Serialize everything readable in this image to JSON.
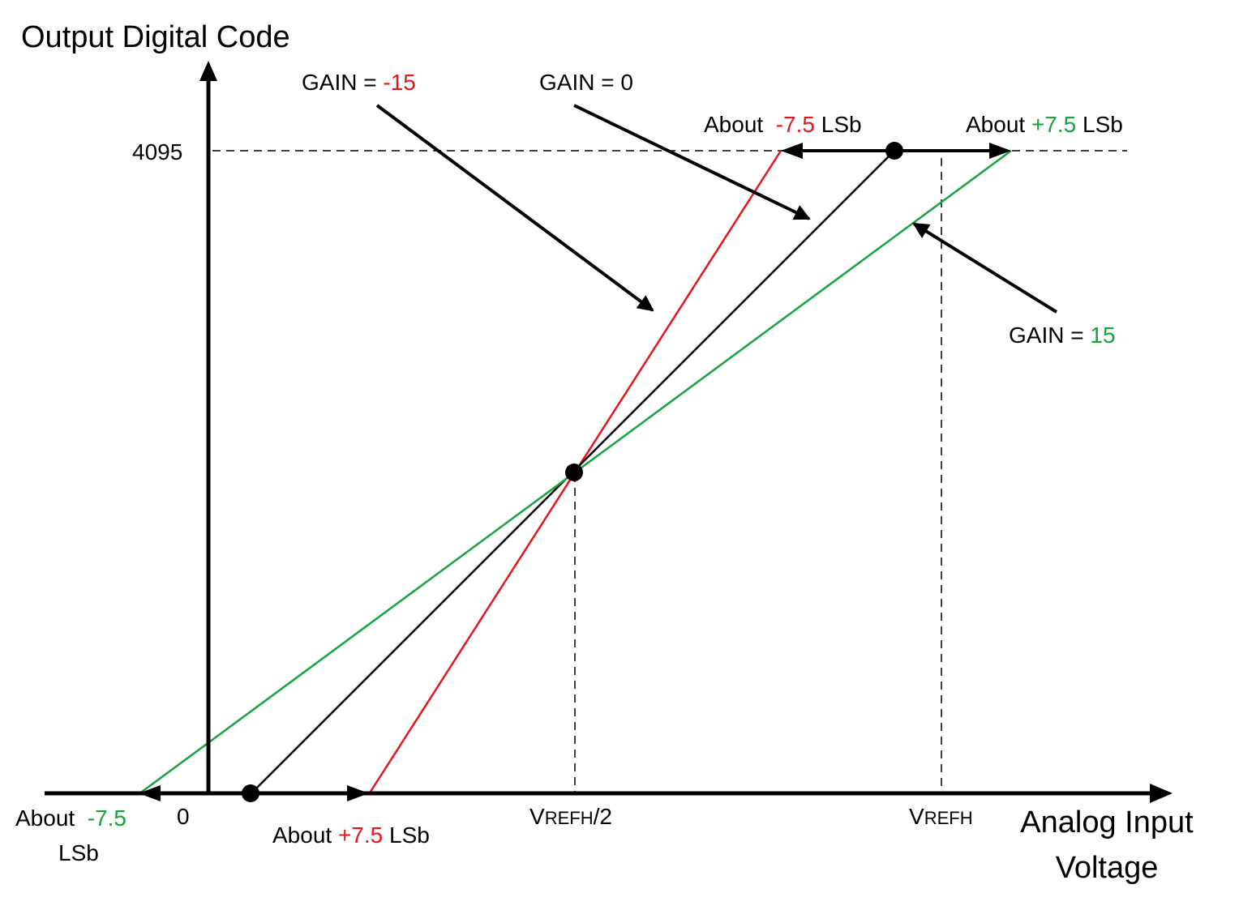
{
  "colors": {
    "axis": "#000000",
    "gain_neg": "#e8141b",
    "gain_zero": "#000000",
    "gain_pos": "#14a33c",
    "background": "#ffffff"
  },
  "axes": {
    "y_title": "Output Digital Code",
    "x_title_line1": "Analog Input",
    "x_title_line2": "Voltage",
    "y_tick_top": "4095",
    "x_tick_zero": "0",
    "x_tick_mid_big": "V",
    "x_tick_mid_small": "REFH",
    "x_tick_mid_suffix": "/2",
    "x_tick_end_big": "V",
    "x_tick_end_small": "REFH"
  },
  "gain_labels": {
    "neg": {
      "prefix": "GAIN = ",
      "value": "-15"
    },
    "zero": {
      "prefix": "GAIN = ",
      "value": "0"
    },
    "pos": {
      "prefix": "GAIN = ",
      "value": "15"
    }
  },
  "offset_labels": {
    "top_neg": {
      "prefix": "About  ",
      "value": "-7.5",
      "suffix": " LSb"
    },
    "top_pos": {
      "prefix": "About ",
      "value": "+7.5",
      "suffix": " LSb"
    },
    "bottom_pos": {
      "prefix": "About ",
      "value": "+7.5",
      "suffix": " LSb"
    },
    "bottom_neg": {
      "prefix": "About  ",
      "value": "-7.5",
      "line2": "LSb"
    }
  }
}
